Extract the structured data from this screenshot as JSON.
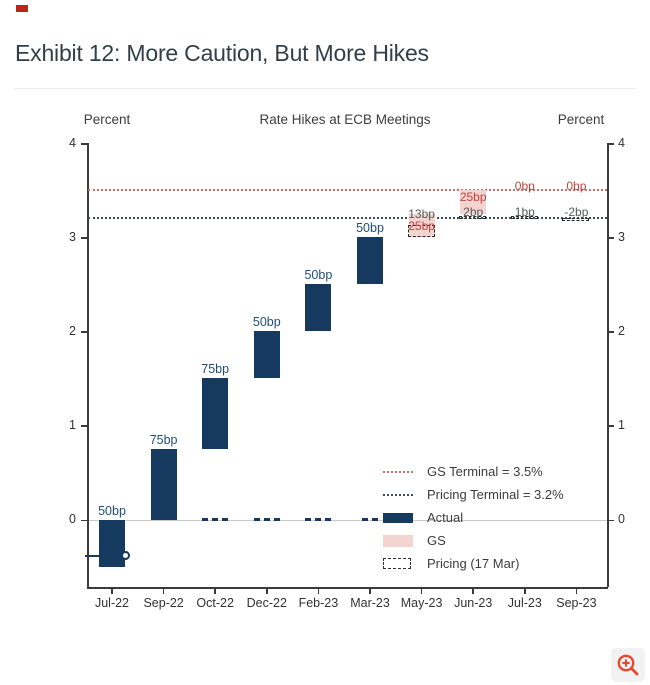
{
  "page": {
    "title": "Exhibit 12: More Caution, But More Hikes"
  },
  "chart_data": {
    "type": "bar",
    "variant": "waterfall",
    "title": "Rate Hikes at ECB Meetings",
    "left_axis_label": "Percent",
    "right_axis_label": "Percent",
    "y_ticks": [
      0,
      1,
      2,
      3,
      4
    ],
    "ylim": [
      -0.72,
      4
    ],
    "grid": "zero-line-only",
    "categories": [
      "Jul-22",
      "Sep-22",
      "Oct-22",
      "Dec-22",
      "Feb-23",
      "Mar-23",
      "May-23",
      "Jun-23",
      "Jul-23",
      "Sep-23"
    ],
    "actual_segments": [
      {
        "category": "Jul-22",
        "label": "50bp",
        "from": -0.5,
        "to": 0
      },
      {
        "category": "Sep-22",
        "label": "75bp",
        "from": 0,
        "to": 0.75
      },
      {
        "category": "Oct-22",
        "label": "75bp",
        "from": 0.75,
        "to": 1.5
      },
      {
        "category": "Dec-22",
        "label": "50bp",
        "from": 1.5,
        "to": 2.0
      },
      {
        "category": "Feb-23",
        "label": "50bp",
        "from": 2.0,
        "to": 2.5
      },
      {
        "category": "Mar-23",
        "label": "50bp",
        "from": 2.5,
        "to": 3.0
      }
    ],
    "gs_segments": [
      {
        "category": "May-23",
        "from": 3.0,
        "to": 3.25
      },
      {
        "category": "Jun-23",
        "from": 3.25,
        "to": 3.5
      }
    ],
    "pricing_boxes": [
      {
        "category": "May-23",
        "from": 3.0,
        "to": 3.13
      },
      {
        "category": "Jun-23",
        "from": 3.195,
        "to": 3.225
      },
      {
        "category": "Jul-23",
        "from": 3.195,
        "to": 3.22
      },
      {
        "category": "Sep-23",
        "from": 3.17,
        "to": 3.2
      }
    ],
    "annotations": [
      {
        "category": "May-23",
        "text": "13bp",
        "color": "gray",
        "v": 3.25
      },
      {
        "category": "May-23",
        "text": "25bp",
        "color": "red",
        "v": 3.12
      },
      {
        "category": "Jun-23",
        "text": "25bp",
        "color": "red",
        "v": 3.43
      },
      {
        "category": "Jun-23",
        "text": "2bp",
        "color": "gray",
        "v": 3.27
      },
      {
        "category": "Jul-23",
        "text": "0bp",
        "color": "red",
        "v": 3.55
      },
      {
        "category": "Jul-23",
        "text": "1bp",
        "color": "gray",
        "v": 3.27
      },
      {
        "category": "Sep-23",
        "text": "0bp",
        "color": "red",
        "v": 3.55
      },
      {
        "category": "Sep-23",
        "text": "-2bp",
        "color": "gray",
        "v": 3.27
      }
    ],
    "reference_lines": [
      {
        "name": "gs-terminal",
        "label": "GS Terminal = 3.5%",
        "value": 3.5,
        "color": "#c9706b",
        "style": "dotted"
      },
      {
        "name": "pricing-terminal",
        "label": "Pricing Terminal = 3.2%",
        "value": 3.2,
        "color": "#3d4f63",
        "style": "dotted"
      }
    ],
    "zero_line_dashes": [
      "Oct-22",
      "Dec-22",
      "Feb-23",
      "Mar-23"
    ],
    "legend": [
      {
        "swatch": "dotted-red",
        "label": "GS Terminal = 3.5%"
      },
      {
        "swatch": "dotted-navy",
        "label": "Pricing Terminal = 3.2%"
      },
      {
        "swatch": "fill-navy",
        "label": "Actual"
      },
      {
        "swatch": "fill-pink",
        "label": "GS"
      },
      {
        "swatch": "dashed-box",
        "label": "Pricing (17 Mar)"
      }
    ],
    "colors": {
      "actual": "#16395f",
      "gs_fill": "#f3d4d1",
      "red_text": "#c0453e",
      "gray_text": "#595959",
      "bar_label": "#1f4e79",
      "axis": "#3a3a3a",
      "zero_line": "#c9c9c9"
    }
  },
  "icons": {
    "zoom_button": "magnifier-plus-icon"
  }
}
